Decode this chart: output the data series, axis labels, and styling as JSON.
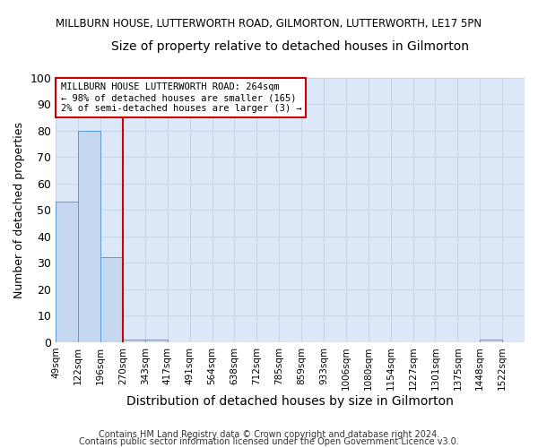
{
  "title": "MILLBURN HOUSE, LUTTERWORTH ROAD, GILMORTON, LUTTERWORTH, LE17 5PN",
  "subtitle": "Size of property relative to detached houses in Gilmorton",
  "xlabel": "Distribution of detached houses by size in Gilmorton",
  "ylabel": "Number of detached properties",
  "categories": [
    "49sqm",
    "122sqm",
    "196sqm",
    "270sqm",
    "343sqm",
    "417sqm",
    "491sqm",
    "564sqm",
    "638sqm",
    "712sqm",
    "785sqm",
    "859sqm",
    "933sqm",
    "1006sqm",
    "1080sqm",
    "1154sqm",
    "1227sqm",
    "1301sqm",
    "1375sqm",
    "1448sqm",
    "1522sqm"
  ],
  "values": [
    53,
    80,
    32,
    1,
    1,
    0,
    0,
    0,
    0,
    0,
    0,
    0,
    0,
    0,
    0,
    0,
    0,
    0,
    0,
    1,
    0
  ],
  "bar_color": "#c5d8f0",
  "bar_edge_color": "#5b9bd5",
  "red_line_x": 3,
  "ylim": [
    0,
    100
  ],
  "yticks": [
    0,
    10,
    20,
    30,
    40,
    50,
    60,
    70,
    80,
    90,
    100
  ],
  "annotation_text": "MILLBURN HOUSE LUTTERWORTH ROAD: 264sqm\n← 98% of detached houses are smaller (165)\n2% of semi-detached houses are larger (3) →",
  "annotation_box_color": "#ffffff",
  "annotation_box_edge_color": "#cc0000",
  "red_line_color": "#cc0000",
  "grid_color": "#c8d4e8",
  "background_color": "#dce8f8",
  "footer_line1": "Contains HM Land Registry data © Crown copyright and database right 2024.",
  "footer_line2": "Contains public sector information licensed under the Open Government Licence v3.0.",
  "title_fontsize": 8.5,
  "subtitle_fontsize": 10,
  "footer_fontsize": 7,
  "ylabel_fontsize": 9,
  "xlabel_fontsize": 10
}
